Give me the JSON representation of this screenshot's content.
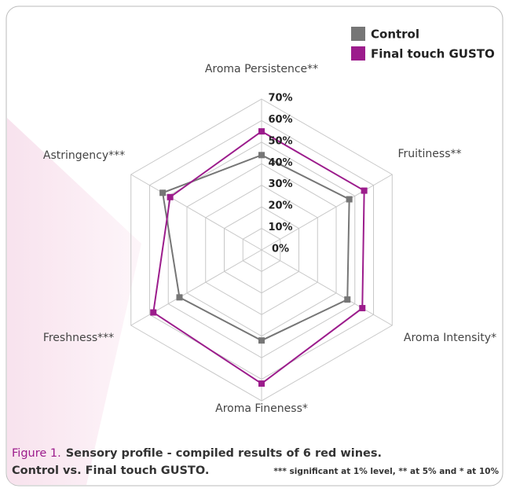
{
  "chart_data": {
    "type": "radar",
    "categories": [
      "Aroma Persistence**",
      "Fruitiness**",
      "Aroma Intensity*",
      "Aroma Fineness*",
      "Freshness***",
      "Astringency***"
    ],
    "series": [
      {
        "name": "Control",
        "color": "#767676",
        "values": [
          44,
          47,
          46,
          42,
          44,
          53
        ]
      },
      {
        "name": "Final touch GUSTO",
        "color": "#9c1c8c",
        "values": [
          55,
          55,
          54,
          62,
          58,
          49
        ]
      }
    ],
    "rlim": [
      0,
      70
    ],
    "rticks": [
      {
        "value": 0,
        "label": "0%"
      },
      {
        "value": 10,
        "label": "10%"
      },
      {
        "value": 20,
        "label": "20%"
      },
      {
        "value": 30,
        "label": "30%"
      },
      {
        "value": 40,
        "label": "40%"
      },
      {
        "value": 50,
        "label": "50%"
      },
      {
        "value": 60,
        "label": "60%"
      },
      {
        "value": 70,
        "label": "70%"
      }
    ],
    "grid": true
  },
  "caption": {
    "figure_label": "Figure 1.",
    "line1": "Sensory profile - compiled results of 6 red wines.",
    "line2": "Control vs. Final touch GUSTO.",
    "note": "*** significant at 1% level, ** at 5% and * at 10%"
  }
}
